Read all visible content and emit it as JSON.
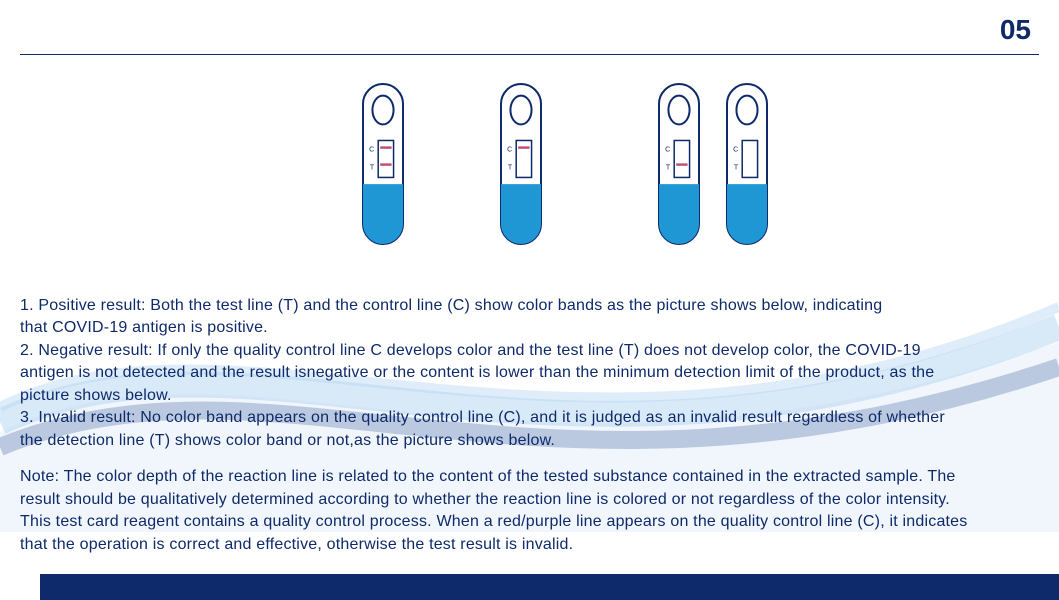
{
  "page_number": "05",
  "colors": {
    "brand_dark": "#0e2a6a",
    "brand_mid": "#1f4fb0",
    "tube_stroke": "#0e2a6a",
    "tube_fluid": "#1f97d4",
    "line_pos": "#c04a72",
    "page_num": "#0e2a6a",
    "hr": "#0e2a6a",
    "text": "#0e2a6a",
    "swoosh_a": "#7fb7e8",
    "swoosh_b": "#0e3a8a",
    "swoosh_c": "#b8d4f2"
  },
  "strips": [
    {
      "c_label": "C",
      "t_label": "T",
      "show_c": true,
      "show_t": true
    },
    {
      "c_label": "C",
      "t_label": "T",
      "show_c": true,
      "show_t": false
    },
    {
      "c_label": "C",
      "t_label": "T",
      "show_c": false,
      "show_t": true
    },
    {
      "c_label": "C",
      "t_label": "T",
      "show_c": false,
      "show_t": false
    }
  ],
  "para_1a": "1. Positive result: Both the test line (T) and the control line (C) show color bands as the picture shows below, indicating",
  "para_1b": " that COVID-19 antigen is positive.",
  "para_2a": "2. Negative result: If only the quality control line C develops color and the test line (T) does not develop color, the COVID-19",
  "para_2b": "antigen is not detected and the result isnegative or the content is lower than the minimum detection limit of the product, as the",
  "para_2c": " picture shows below.",
  "para_3a": "3. Invalid result: No color band appears on the quality control line (C), and it is judged as an invalid result regardless of whether",
  "para_3b": "the detection line (T) shows color band or not,as the picture shows below.",
  "note_a": "Note: The color depth of the reaction line is related to the content of the tested substance contained in the extracted sample. The",
  "note_b": "result should be qualitatively determined according to whether the reaction line is colored or not regardless of the color intensity.",
  "note_c": "This test card reagent contains a quality control process. When a red/purple line appears on the quality control line (C), it indicates",
  "note_d": " that the operation is correct and effective, otherwise the test result is invalid.",
  "style": {
    "page_num_fontsize": 28,
    "body_fontsize": 16,
    "body_lineheight": 1.28,
    "strip_w": 48,
    "strip_h": 168
  }
}
